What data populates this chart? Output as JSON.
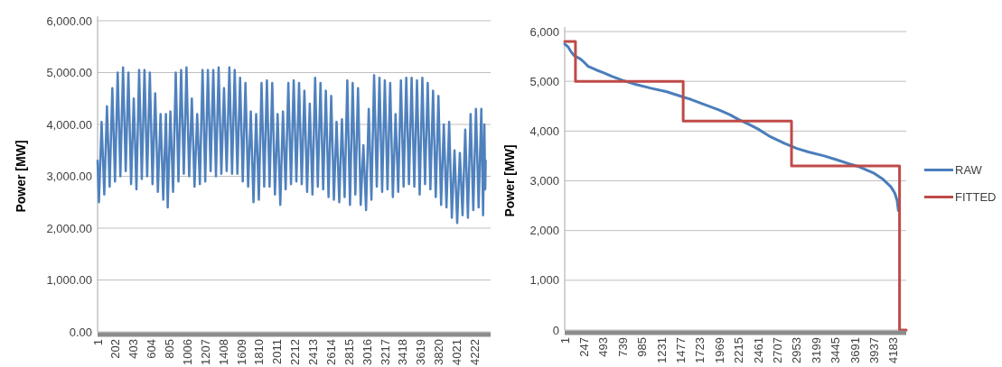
{
  "chart_data": [
    {
      "type": "line",
      "ylabel": "Power [MW]",
      "xlim": [
        1,
        4400
      ],
      "xticks": [
        1,
        202,
        403,
        604,
        805,
        1006,
        1207,
        1408,
        1609,
        1810,
        2011,
        2212,
        2413,
        2614,
        2815,
        3016,
        3217,
        3418,
        3619,
        3820,
        4021,
        4222
      ],
      "ylim": [
        0,
        6000
      ],
      "yticks": [
        {
          "value": 0,
          "label": "0.00"
        },
        {
          "value": 1000,
          "label": "1,000.00"
        },
        {
          "value": 2000,
          "label": "2,000.00"
        },
        {
          "value": 3000,
          "label": "3,000.00"
        },
        {
          "value": 4000,
          "label": "4,000.00"
        },
        {
          "value": 5000,
          "label": "5,000.00"
        },
        {
          "value": 6000,
          "label": "6,000.00"
        }
      ],
      "grid": "y",
      "legend": false,
      "series": [
        {
          "color": "#4f81bd",
          "x": [
            1,
            16,
            46,
            76,
            106,
            136,
            166,
            196,
            226,
            256,
            286,
            316,
            346,
            376,
            406,
            436,
            466,
            496,
            526,
            556,
            586,
            616,
            646,
            676,
            706,
            736,
            766,
            786,
            816,
            846,
            876,
            906,
            936,
            966,
            996,
            1026,
            1056,
            1086,
            1116,
            1146,
            1176,
            1206,
            1236,
            1266,
            1296,
            1326,
            1356,
            1386,
            1416,
            1446,
            1476,
            1506,
            1536,
            1566,
            1596,
            1626,
            1656,
            1686,
            1716,
            1746,
            1776,
            1806,
            1836,
            1866,
            1896,
            1926,
            1956,
            1986,
            2016,
            2046,
            2076,
            2106,
            2136,
            2166,
            2196,
            2226,
            2256,
            2286,
            2316,
            2346,
            2376,
            2406,
            2436,
            2466,
            2496,
            2526,
            2556,
            2586,
            2616,
            2646,
            2676,
            2706,
            2736,
            2766,
            2796,
            2826,
            2856,
            2886,
            2916,
            2946,
            2976,
            3006,
            3036,
            3066,
            3096,
            3126,
            3156,
            3186,
            3216,
            3246,
            3276,
            3306,
            3336,
            3366,
            3396,
            3426,
            3456,
            3486,
            3516,
            3546,
            3576,
            3606,
            3636,
            3666,
            3696,
            3726,
            3756,
            3786,
            3816,
            3846,
            3876,
            3906,
            3936,
            3966,
            3996,
            4026,
            4056,
            4086,
            4116,
            4146,
            4176,
            4206,
            4236,
            4266,
            4296,
            4316,
            4330,
            4340,
            4345
          ],
          "values": [
            3300,
            2500,
            4050,
            2650,
            4350,
            2800,
            4700,
            2900,
            5000,
            3000,
            5100,
            3100,
            5000,
            2850,
            4500,
            2750,
            5050,
            2950,
            5050,
            3000,
            5000,
            2850,
            4600,
            2700,
            4200,
            2550,
            4200,
            2400,
            4250,
            2700,
            5000,
            2900,
            5050,
            3050,
            5100,
            3000,
            4500,
            2800,
            4200,
            2850,
            5050,
            2900,
            5050,
            3100,
            5050,
            3000,
            5100,
            3050,
            4700,
            3100,
            5100,
            3050,
            5050,
            3050,
            4900,
            2900,
            4800,
            2800,
            4250,
            2500,
            4200,
            2550,
            4800,
            2800,
            4850,
            2800,
            4800,
            2650,
            4200,
            2450,
            4250,
            2750,
            4800,
            2850,
            4850,
            2900,
            4800,
            2850,
            4650,
            2700,
            4400,
            2650,
            4900,
            2800,
            4800,
            2750,
            4650,
            2600,
            4550,
            2550,
            4050,
            2500,
            4100,
            2600,
            4850,
            2450,
            4800,
            2650,
            4700,
            2450,
            3600,
            2350,
            4300,
            2550,
            4950,
            2800,
            4900,
            2700,
            4850,
            2750,
            4800,
            2600,
            4200,
            2700,
            4850,
            2800,
            4900,
            2850,
            4900,
            2800,
            4850,
            2650,
            4900,
            2850,
            4800,
            2750,
            4650,
            2600,
            4550,
            2450,
            4000,
            2400,
            4050,
            2200,
            3500,
            2100,
            3450,
            2250,
            3900,
            2200,
            4200,
            2350,
            4300,
            2400,
            4300,
            2250,
            4000,
            2750,
            3300
          ]
        }
      ]
    },
    {
      "type": "line",
      "ylabel": "Power [MW]",
      "xlim": [
        1,
        4345
      ],
      "xticks": [
        1,
        247,
        493,
        739,
        985,
        1231,
        1477,
        1723,
        1969,
        2215,
        2461,
        2707,
        2953,
        3199,
        3445,
        3691,
        3937,
        4183
      ],
      "ylim": [
        0,
        6000
      ],
      "yticks": [
        0,
        {
          "value": 1000,
          "label": "1,000"
        },
        {
          "value": 2000,
          "label": "2,000"
        },
        {
          "value": 3000,
          "label": "3,000"
        },
        {
          "value": 4000,
          "label": "4,000"
        },
        {
          "value": 5000,
          "label": "5,000"
        },
        {
          "value": 6000,
          "label": "6,000"
        }
      ],
      "grid": "y",
      "legend": "right",
      "series": [
        {
          "name": "RAW",
          "color": "#4a7ebb",
          "x": [
            1,
            40,
            80,
            120,
            200,
            250,
            300,
            400,
            500,
            600,
            739,
            900,
            1100,
            1300,
            1477,
            1600,
            1800,
            1969,
            2100,
            2215,
            2350,
            2461,
            2600,
            2800,
            2953,
            3100,
            3300,
            3445,
            3600,
            3750,
            3937,
            4050,
            4150,
            4200,
            4230,
            4245
          ],
          "values": [
            5750,
            5700,
            5600,
            5520,
            5450,
            5380,
            5300,
            5230,
            5170,
            5100,
            5020,
            4940,
            4860,
            4790,
            4700,
            4640,
            4520,
            4420,
            4330,
            4230,
            4130,
            4040,
            3900,
            3750,
            3650,
            3580,
            3500,
            3430,
            3350,
            3280,
            3150,
            3030,
            2880,
            2750,
            2600,
            2400
          ]
        },
        {
          "name": "FITTED",
          "color": "#be4b48",
          "x": [
            1,
            138,
            138,
            1508,
            1508,
            2886,
            2886,
            4260,
            4260,
            4345
          ],
          "values": [
            5800,
            5800,
            5000,
            5000,
            4200,
            4200,
            3300,
            3300,
            0,
            0
          ]
        }
      ]
    }
  ]
}
